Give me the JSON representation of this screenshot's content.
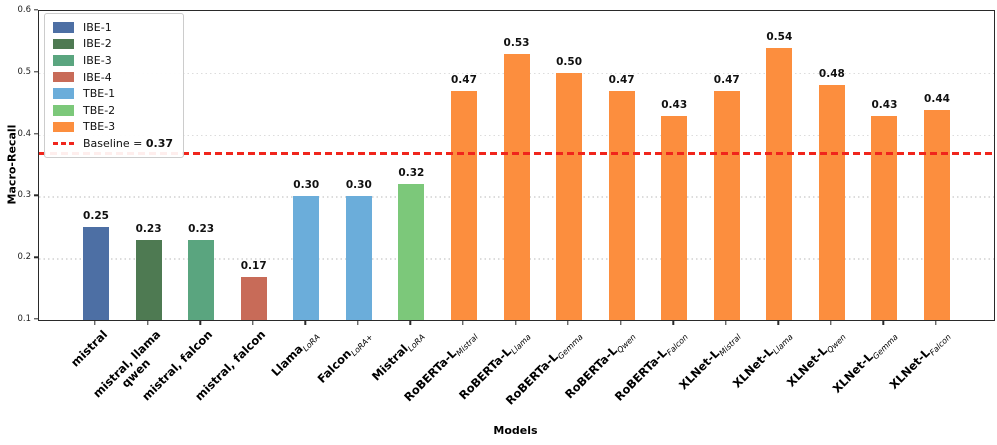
{
  "chart_data": {
    "type": "bar",
    "title": "",
    "xlabel": "Models",
    "ylabel": "Macro-Recall",
    "ylim": [
      0.1,
      0.6
    ],
    "yticks": [
      "0.1",
      "0.2",
      "0.3",
      "0.4",
      "0.5",
      "0.6"
    ],
    "grid": true,
    "legend_position": "upper left",
    "legend": [
      {
        "label": "IBE-1",
        "color": "#4d6fa4"
      },
      {
        "label": "IBE-2",
        "color": "#4e7a52"
      },
      {
        "label": "IBE-3",
        "color": "#5aa57f"
      },
      {
        "label": "IBE-4",
        "color": "#c86b58"
      },
      {
        "label": "TBE-1",
        "color": "#6badda"
      },
      {
        "label": "TBE-2",
        "color": "#7cc87a"
      },
      {
        "label": "TBE-3",
        "color": "#fc8e3e"
      }
    ],
    "baseline": {
      "value": 0.37,
      "label_prefix": "Baseline = ",
      "value_label": "0.37",
      "color": "#f0251c"
    },
    "bars": [
      {
        "name": "mistral",
        "sub": "",
        "line2": "",
        "value": 0.25,
        "group": "IBE-1"
      },
      {
        "name": "mistral, llama",
        "sub": "",
        "line2": "qwen",
        "value": 0.23,
        "group": "IBE-2"
      },
      {
        "name": "mistral, falcon",
        "sub": "",
        "line2": "",
        "value": 0.23,
        "group": "IBE-3"
      },
      {
        "name": "mistral, falcon",
        "sub": "",
        "line2": "",
        "value": 0.17,
        "group": "IBE-4"
      },
      {
        "name": "Llama",
        "sub": "LoRA",
        "line2": "",
        "value": 0.3,
        "group": "TBE-1"
      },
      {
        "name": "Falcon",
        "sub": "LoRA+",
        "line2": "",
        "value": 0.3,
        "group": "TBE-1"
      },
      {
        "name": "Mistral",
        "sub": "LoRA",
        "line2": "",
        "value": 0.32,
        "group": "TBE-2"
      },
      {
        "name": "RoBERTa-L",
        "sub": "Mistral",
        "line2": "",
        "value": 0.47,
        "group": "TBE-3"
      },
      {
        "name": "RoBERTa-L",
        "sub": "Llama",
        "line2": "",
        "value": 0.53,
        "group": "TBE-3"
      },
      {
        "name": "RoBERTa-L",
        "sub": "Gemma",
        "line2": "",
        "value": 0.5,
        "group": "TBE-3"
      },
      {
        "name": "RoBERTa-L",
        "sub": "Qwen",
        "line2": "",
        "value": 0.47,
        "group": "TBE-3"
      },
      {
        "name": "RoBERTa-L",
        "sub": "Falcon",
        "line2": "",
        "value": 0.43,
        "group": "TBE-3"
      },
      {
        "name": "XLNet-L",
        "sub": "Mistral",
        "line2": "",
        "value": 0.47,
        "group": "TBE-3"
      },
      {
        "name": "XLNet-L",
        "sub": "Llama",
        "line2": "",
        "value": 0.54,
        "group": "TBE-3"
      },
      {
        "name": "XLNet-L",
        "sub": "Qwen",
        "line2": "",
        "value": 0.48,
        "group": "TBE-3"
      },
      {
        "name": "XLNet-L",
        "sub": "Gemma",
        "line2": "",
        "value": 0.43,
        "group": "TBE-3"
      },
      {
        "name": "XLNet-L",
        "sub": "Falcon",
        "line2": "",
        "value": 0.44,
        "group": "TBE-3"
      }
    ]
  }
}
